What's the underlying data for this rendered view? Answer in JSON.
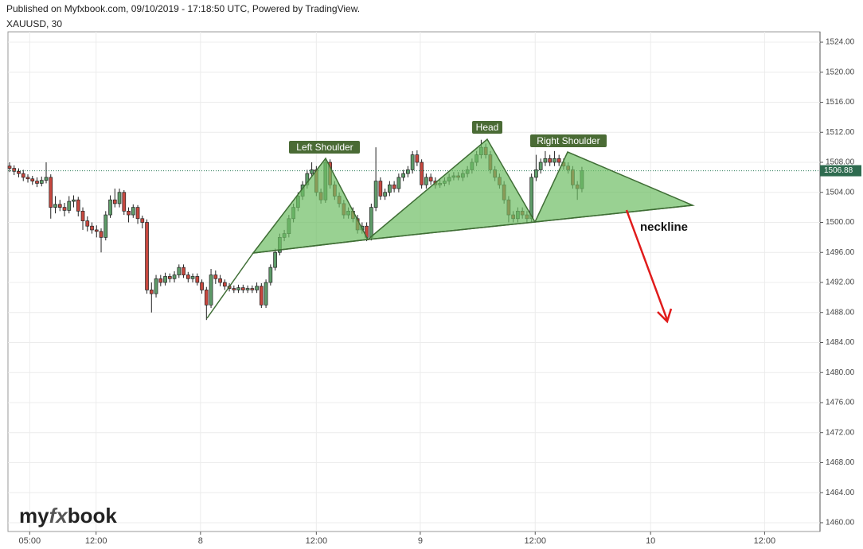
{
  "header": {
    "published": "Published on Myfxbook.com, 09/10/2019 - 17:18:50 UTC, Powered by TradingView.",
    "symbol": "XAUUSD, 30"
  },
  "chart_data": {
    "type": "candlestick",
    "open": [
      1507.5,
      1507.2,
      1506.8,
      1506.5,
      1506.0,
      1505.8,
      1505.5,
      1505.2,
      1505.6,
      1506.0,
      1502.0,
      1502.4,
      1502.0,
      1501.6,
      1502.8,
      1503.0,
      1501.5,
      1500.2,
      1499.5,
      1499.0,
      1498.8,
      1498.0,
      1501.0,
      1503.0,
      1502.5,
      1504.0,
      1501.5,
      1501.0,
      1502.0,
      1500.5,
      1500.0,
      1491.0,
      1490.5,
      1492.5,
      1492.0,
      1492.8,
      1492.5,
      1493.0,
      1494.0,
      1493.0,
      1492.5,
      1492.8,
      1492.0,
      1491.0,
      1489.0,
      1493.0,
      1492.5,
      1492.0,
      1491.5,
      1491.2,
      1491.0,
      1491.3,
      1491.0,
      1491.2,
      1491.0,
      1491.5,
      1489.0,
      1492.0,
      1494.0,
      1496.0,
      1498.0,
      1498.5,
      1500.5,
      1502.0,
      1503.5,
      1505.0,
      1506.5,
      1507.0,
      1504.0,
      1503.0,
      1508.0,
      1505.0,
      1503.5,
      1502.5,
      1501.0,
      1501.5,
      1500.5,
      1499.0,
      1499.5,
      1498.0,
      1502.0,
      1505.5,
      1503.5,
      1504.0,
      1505.0,
      1504.5,
      1506.0,
      1506.5,
      1507.0,
      1509.0,
      1508.0,
      1505.0,
      1506.0,
      1505.5,
      1505.0,
      1505.2,
      1505.5,
      1506.0,
      1506.2,
      1506.0,
      1506.5,
      1507.0,
      1508.0,
      1509.0,
      1510.0,
      1509.0,
      1507.0,
      1506.0,
      1505.0,
      1503.0,
      1501.0,
      1500.5,
      1501.5,
      1501.0,
      1500.5,
      1506.0,
      1507.0,
      1508.0,
      1508.5,
      1508.0,
      1508.5,
      1508.0,
      1507.5,
      1507.0,
      1505.0,
      1504.5
    ],
    "high": [
      1508.0,
      1507.6,
      1507.2,
      1507.0,
      1506.4,
      1506.2,
      1506.0,
      1506.1,
      1508.0,
      1506.4,
      1503.5,
      1503.0,
      1502.6,
      1503.5,
      1503.6,
      1503.4,
      1502.0,
      1500.8,
      1500.0,
      1499.6,
      1499.2,
      1501.5,
      1503.6,
      1504.5,
      1504.5,
      1504.3,
      1502.0,
      1502.4,
      1502.3,
      1500.9,
      1500.4,
      1492.0,
      1493.0,
      1493.0,
      1493.3,
      1493.2,
      1493.5,
      1494.4,
      1494.4,
      1493.4,
      1493.2,
      1493.2,
      1492.4,
      1491.4,
      1493.8,
      1493.6,
      1493.0,
      1492.4,
      1491.9,
      1491.6,
      1491.7,
      1491.7,
      1491.6,
      1491.6,
      1492.0,
      1491.9,
      1492.4,
      1494.4,
      1496.5,
      1498.5,
      1499.0,
      1501.0,
      1502.5,
      1504.0,
      1505.5,
      1507.0,
      1508.0,
      1507.5,
      1504.5,
      1508.5,
      1508.4,
      1505.5,
      1504.0,
      1503.0,
      1502.0,
      1502.0,
      1501.0,
      1500.0,
      1500.0,
      1502.5,
      1510.0,
      1506.0,
      1504.5,
      1505.5,
      1505.5,
      1506.5,
      1507.0,
      1507.5,
      1509.5,
      1509.6,
      1508.4,
      1506.5,
      1506.5,
      1506.0,
      1505.7,
      1506.0,
      1506.5,
      1506.7,
      1506.7,
      1507.0,
      1507.5,
      1508.5,
      1509.5,
      1511.0,
      1510.5,
      1509.5,
      1507.5,
      1506.5,
      1505.5,
      1503.5,
      1501.5,
      1502.0,
      1502.0,
      1501.5,
      1506.5,
      1509.0,
      1508.5,
      1509.5,
      1509.0,
      1509.5,
      1509.0,
      1508.5,
      1508.0,
      1507.5,
      1505.5,
      1507.4
    ],
    "low": [
      1506.7,
      1506.3,
      1506.0,
      1505.5,
      1505.3,
      1505.0,
      1504.7,
      1504.8,
      1505.2,
      1500.5,
      1501.2,
      1501.5,
      1500.8,
      1501.2,
      1502.0,
      1500.8,
      1499.0,
      1498.8,
      1498.5,
      1498.0,
      1496.0,
      1497.6,
      1500.6,
      1502.0,
      1502.0,
      1501.0,
      1500.0,
      1500.6,
      1499.8,
      1499.2,
      1490.5,
      1488.0,
      1490.0,
      1491.5,
      1491.6,
      1492.0,
      1492.0,
      1492.6,
      1492.6,
      1492.0,
      1492.0,
      1491.6,
      1490.5,
      1487.0,
      1488.6,
      1491.8,
      1491.5,
      1491.0,
      1490.8,
      1490.6,
      1490.6,
      1490.6,
      1490.6,
      1490.6,
      1490.6,
      1488.6,
      1488.6,
      1491.6,
      1493.6,
      1495.6,
      1497.5,
      1498.0,
      1500.0,
      1501.5,
      1503.0,
      1504.5,
      1506.0,
      1503.5,
      1502.5,
      1502.6,
      1504.5,
      1503.0,
      1502.0,
      1500.5,
      1500.5,
      1500.0,
      1498.5,
      1498.5,
      1497.5,
      1497.6,
      1501.5,
      1503.0,
      1503.0,
      1503.5,
      1504.0,
      1504.0,
      1505.5,
      1506.0,
      1506.5,
      1507.5,
      1504.5,
      1504.5,
      1505.0,
      1504.5,
      1504.6,
      1504.8,
      1505.0,
      1505.6,
      1505.6,
      1505.5,
      1506.0,
      1506.5,
      1507.5,
      1508.5,
      1508.5,
      1506.5,
      1505.5,
      1504.5,
      1502.5,
      1500.0,
      1500.0,
      1500.0,
      1500.5,
      1500.0,
      1500.0,
      1505.5,
      1506.5,
      1507.5,
      1507.5,
      1507.5,
      1507.5,
      1507.0,
      1506.5,
      1504.5,
      1503.0,
      1504.0
    ],
    "close": [
      1507.2,
      1506.8,
      1506.5,
      1506.0,
      1505.8,
      1505.5,
      1505.2,
      1505.6,
      1506.0,
      1502.0,
      1502.4,
      1502.0,
      1501.6,
      1502.8,
      1503.0,
      1501.5,
      1500.2,
      1499.5,
      1499.0,
      1498.8,
      1498.0,
      1501.0,
      1503.0,
      1502.5,
      1504.0,
      1501.5,
      1501.0,
      1502.0,
      1500.5,
      1500.0,
      1491.0,
      1490.5,
      1492.5,
      1492.0,
      1492.8,
      1492.5,
      1493.0,
      1494.0,
      1493.0,
      1492.5,
      1492.8,
      1492.0,
      1491.0,
      1489.0,
      1493.0,
      1492.5,
      1492.0,
      1491.5,
      1491.2,
      1491.0,
      1491.3,
      1491.0,
      1491.2,
      1491.0,
      1491.5,
      1489.0,
      1492.0,
      1494.0,
      1496.0,
      1498.0,
      1498.5,
      1500.5,
      1502.0,
      1503.5,
      1505.0,
      1506.5,
      1507.0,
      1504.0,
      1503.0,
      1508.0,
      1505.0,
      1503.5,
      1502.5,
      1501.0,
      1501.5,
      1500.5,
      1499.0,
      1499.5,
      1498.0,
      1502.0,
      1505.5,
      1503.5,
      1504.0,
      1505.0,
      1504.5,
      1506.0,
      1506.5,
      1507.0,
      1509.0,
      1508.0,
      1505.0,
      1506.0,
      1505.5,
      1505.0,
      1505.2,
      1505.5,
      1506.0,
      1506.2,
      1506.0,
      1506.5,
      1507.0,
      1508.0,
      1509.0,
      1510.0,
      1509.0,
      1507.0,
      1506.0,
      1505.0,
      1503.0,
      1501.0,
      1500.5,
      1501.5,
      1501.0,
      1500.5,
      1506.0,
      1507.0,
      1508.0,
      1508.5,
      1508.0,
      1508.5,
      1508.0,
      1507.5,
      1507.0,
      1505.0,
      1504.5,
      1506.88
    ],
    "up_color": "#5f9c6a",
    "down_color": "#c8483f",
    "last_price": 1506.88,
    "xlim": [
      0,
      177
    ],
    "xticks": [
      {
        "value": 4.4,
        "label": "05:00"
      },
      {
        "value": 18.9,
        "label": "12:00"
      },
      {
        "value": 41.7,
        "label": "8"
      },
      {
        "value": 67,
        "label": "12:00"
      },
      {
        "value": 89.7,
        "label": "9"
      },
      {
        "value": 114.8,
        "label": "12:00"
      },
      {
        "value": 140,
        "label": "10"
      },
      {
        "value": 164.9,
        "label": "12:00"
      }
    ],
    "ylim": [
      1458.83,
      1525.38
    ],
    "yticks": [
      {
        "value": 1460,
        "label": "1460.00"
      },
      {
        "value": 1464,
        "label": "1464.00"
      },
      {
        "value": 1468,
        "label": "1468.00"
      },
      {
        "value": 1472,
        "label": "1472.00"
      },
      {
        "value": 1476,
        "label": "1476.00"
      },
      {
        "value": 1480,
        "label": "1480.00"
      },
      {
        "value": 1484,
        "label": "1484.00"
      },
      {
        "value": 1488,
        "label": "1488.00"
      },
      {
        "value": 1492,
        "label": "1492.00"
      },
      {
        "value": 1496,
        "label": "1496.00"
      },
      {
        "value": 1500,
        "label": "1500.00"
      },
      {
        "value": 1504,
        "label": "1504.00"
      },
      {
        "value": 1508,
        "label": "1508.00"
      },
      {
        "value": 1512,
        "label": "1512.00"
      },
      {
        "value": 1516,
        "label": "1516.00"
      },
      {
        "value": 1520,
        "label": "1520.00"
      },
      {
        "value": 1524,
        "label": "1524.00"
      }
    ],
    "grid": true,
    "annotations": {
      "left_shoulder": "Left Shoulder",
      "head": "Head",
      "right_shoulder": "Right Shoulder",
      "neckline": "neckline"
    },
    "logo": [
      "my",
      "fx",
      "book"
    ]
  }
}
